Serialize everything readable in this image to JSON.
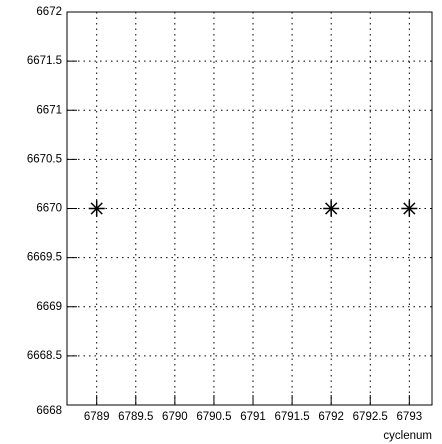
{
  "chart_data": {
    "type": "scatter",
    "x_label": "cyclenum",
    "x": [
      6789,
      6792,
      6793
    ],
    "values": [
      6670,
      6670,
      6670
    ],
    "color": "#000000",
    "xlim": [
      6788.62,
      6793.29
    ],
    "ylim": [
      6668,
      6672
    ],
    "xticks": [
      6789,
      6789.5,
      6790,
      6790.5,
      6791,
      6791.5,
      6792,
      6792.5,
      6793
    ],
    "yticks": [
      6668,
      6668.5,
      6669,
      6669.5,
      6670,
      6670.5,
      6671,
      6671.5,
      6672
    ],
    "grid": true
  }
}
